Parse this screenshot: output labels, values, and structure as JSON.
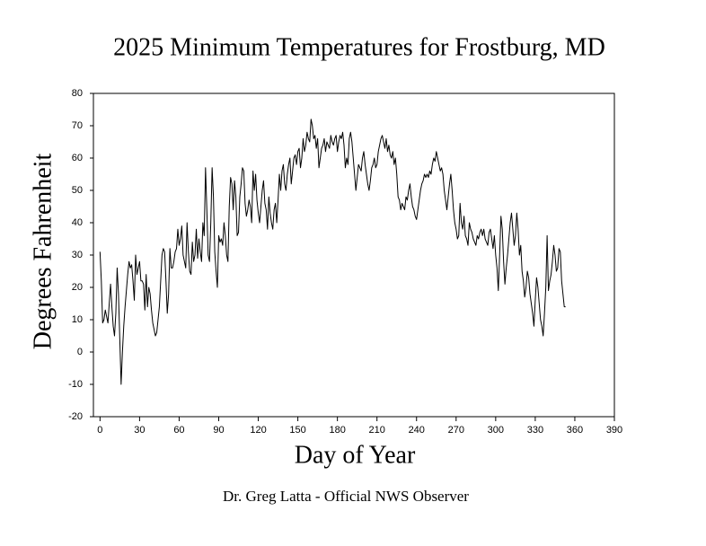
{
  "chart_data": {
    "type": "line",
    "title": "2025 Minimum Temperatures for Frostburg, MD",
    "x_label": "Day of Year",
    "y_label": "Degrees Fahrenheit",
    "footer": "Dr. Greg Latta - Official NWS Observer",
    "color": "#000000",
    "xlim": [
      -5,
      390
    ],
    "xticks": [
      0,
      30,
      60,
      90,
      120,
      150,
      180,
      210,
      240,
      270,
      300,
      330,
      360,
      390
    ],
    "ylim": [
      -20,
      80
    ],
    "yticks": [
      -20,
      -10,
      0,
      10,
      20,
      30,
      40,
      50,
      60,
      70,
      80
    ],
    "grid": false,
    "x": [
      0,
      1,
      2,
      3,
      4,
      5,
      6,
      7,
      8,
      9,
      10,
      11,
      12,
      13,
      14,
      15,
      16,
      17,
      18,
      19,
      20,
      21,
      22,
      23,
      24,
      25,
      26,
      27,
      28,
      29,
      30,
      31,
      32,
      33,
      34,
      35,
      36,
      37,
      38,
      39,
      40,
      41,
      42,
      43,
      44,
      45,
      46,
      47,
      48,
      49,
      50,
      51,
      52,
      53,
      54,
      55,
      56,
      57,
      58,
      59,
      60,
      61,
      62,
      63,
      64,
      65,
      66,
      67,
      68,
      69,
      70,
      71,
      72,
      73,
      74,
      75,
      76,
      77,
      78,
      79,
      80,
      81,
      82,
      83,
      84,
      85,
      86,
      87,
      88,
      89,
      90,
      91,
      92,
      93,
      94,
      95,
      96,
      97,
      98,
      99,
      100,
      101,
      102,
      103,
      104,
      105,
      106,
      107,
      108,
      109,
      110,
      111,
      112,
      113,
      114,
      115,
      116,
      117,
      118,
      119,
      120,
      121,
      122,
      123,
      124,
      125,
      126,
      127,
      128,
      129,
      130,
      131,
      132,
      133,
      134,
      135,
      136,
      137,
      138,
      139,
      140,
      141,
      142,
      143,
      144,
      145,
      146,
      147,
      148,
      149,
      150,
      151,
      152,
      153,
      154,
      155,
      156,
      157,
      158,
      159,
      160,
      161,
      162,
      163,
      164,
      165,
      166,
      167,
      168,
      169,
      170,
      171,
      172,
      173,
      174,
      175,
      176,
      177,
      178,
      179,
      180,
      181,
      182,
      183,
      184,
      185,
      186,
      187,
      188,
      189,
      190,
      191,
      192,
      193,
      194,
      195,
      196,
      197,
      198,
      199,
      200,
      201,
      202,
      203,
      204,
      205,
      206,
      207,
      208,
      209,
      210,
      211,
      212,
      213,
      214,
      215,
      216,
      217,
      218,
      219,
      220,
      221,
      222,
      223,
      224,
      225,
      226,
      227,
      228,
      229,
      230,
      231,
      232,
      233,
      234,
      235,
      236,
      237,
      238,
      239,
      240,
      241,
      242,
      243,
      244,
      245,
      246,
      247,
      248,
      249,
      250,
      251,
      252,
      253,
      254,
      255,
      256,
      257,
      258,
      259,
      260,
      261,
      262,
      263,
      264,
      265,
      266,
      267,
      268,
      269,
      270,
      271,
      272,
      273,
      274,
      275,
      276,
      277,
      278,
      279,
      280,
      281,
      282,
      283,
      284,
      285,
      286,
      287,
      288,
      289,
      290,
      291,
      292,
      293,
      294,
      295,
      296,
      297,
      298,
      299,
      300,
      301,
      302,
      303,
      304,
      305,
      306,
      307,
      308,
      309,
      310,
      311,
      312,
      313,
      314,
      315,
      316,
      317,
      318,
      319,
      320,
      321,
      322,
      323,
      324,
      325,
      326,
      327,
      328,
      329,
      330,
      331,
      332,
      333,
      334,
      335,
      336,
      337,
      338,
      339,
      340,
      341,
      342,
      343,
      344,
      345,
      346,
      347,
      348,
      349,
      350,
      351,
      352,
      353
    ],
    "values": [
      31,
      22,
      9,
      10,
      13,
      11,
      9,
      15,
      21,
      14,
      8,
      5,
      12,
      26,
      18,
      4,
      -10,
      0,
      8,
      14,
      19,
      24,
      28,
      26,
      27,
      22,
      16,
      30,
      24,
      26,
      28,
      22,
      22,
      21,
      13,
      24,
      14,
      20,
      18,
      13,
      9,
      7,
      5,
      6,
      10,
      14,
      22,
      30,
      32,
      31,
      22,
      12,
      18,
      32,
      26,
      26,
      28,
      31,
      32,
      38,
      33,
      35,
      39,
      30,
      28,
      26,
      40,
      31,
      25,
      24,
      34,
      28,
      30,
      38,
      29,
      35,
      31,
      28,
      40,
      36,
      57,
      44,
      30,
      28,
      40,
      57,
      48,
      31,
      25,
      20,
      36,
      34,
      35,
      33,
      40,
      36,
      30,
      28,
      45,
      54,
      52,
      44,
      53,
      48,
      36,
      37,
      48,
      52,
      57,
      56,
      46,
      42,
      44,
      47,
      45,
      40,
      56,
      50,
      55,
      47,
      43,
      40,
      45,
      50,
      53,
      46,
      44,
      38,
      48,
      43,
      40,
      38,
      44,
      46,
      40,
      47,
      55,
      50,
      56,
      58,
      52,
      50,
      55,
      58,
      60,
      52,
      56,
      60,
      61,
      58,
      62,
      63,
      57,
      60,
      66,
      62,
      64,
      68,
      66,
      65,
      72,
      70,
      66,
      67,
      63,
      66,
      57,
      60,
      63,
      64,
      66,
      62,
      65,
      64,
      63,
      67,
      65,
      64,
      66,
      67,
      62,
      65,
      67,
      66,
      68,
      64,
      57,
      60,
      58,
      66,
      68,
      65,
      60,
      55,
      50,
      54,
      58,
      57,
      56,
      60,
      62,
      58,
      55,
      52,
      50,
      53,
      57,
      58,
      60,
      57,
      58,
      62,
      64,
      66,
      67,
      65,
      63,
      66,
      62,
      64,
      61,
      60,
      62,
      58,
      60,
      55,
      48,
      47,
      44,
      46,
      45,
      44,
      48,
      47,
      50,
      52,
      48,
      45,
      44,
      42,
      41,
      44,
      47,
      50,
      52,
      53,
      55,
      54,
      55,
      54,
      56,
      55,
      58,
      60,
      59,
      62,
      60,
      58,
      56,
      57,
      55,
      50,
      47,
      44,
      48,
      52,
      55,
      50,
      44,
      40,
      38,
      35,
      36,
      46,
      40,
      38,
      42,
      36,
      35,
      33,
      40,
      38,
      37,
      35,
      34,
      33,
      36,
      35,
      37,
      38,
      36,
      38,
      35,
      34,
      33,
      37,
      38,
      35,
      32,
      36,
      30,
      26,
      19,
      30,
      42,
      38,
      28,
      21,
      26,
      30,
      35,
      40,
      43,
      38,
      33,
      36,
      43,
      38,
      30,
      33,
      25,
      22,
      17,
      20,
      25,
      23,
      18,
      15,
      12,
      8,
      16,
      23,
      20,
      15,
      10,
      8,
      5,
      12,
      20,
      36,
      19,
      22,
      24,
      28,
      33,
      30,
      25,
      26,
      32,
      31,
      22,
      18,
      14,
      14
    ]
  }
}
